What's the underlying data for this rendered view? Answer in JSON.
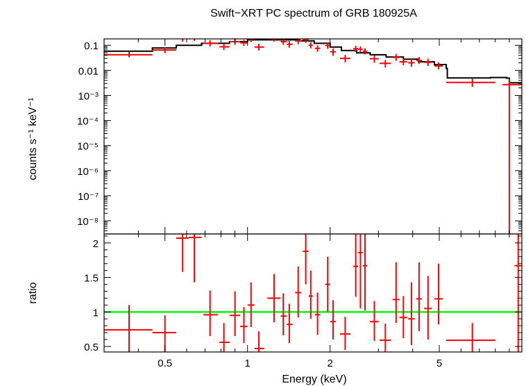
{
  "chart_data": {
    "type": "scatter",
    "title": "Swift−XRT PC spectrum of GRB 180925A",
    "xlabel": "Energy (keV)",
    "x_scale": "log",
    "xlim": [
      0.3,
      10
    ],
    "x_ticks": [
      {
        "value": 0.5,
        "label": "0.5"
      },
      {
        "value": 1,
        "label": "1"
      },
      {
        "value": 2,
        "label": "2"
      },
      {
        "value": 5,
        "label": "5"
      }
    ],
    "colors": {
      "data": "#ff0000",
      "model": "#000000",
      "unity": "#00ff00"
    },
    "top_panel": {
      "ylabel": "counts s⁻¹ keV⁻¹",
      "y_scale": "log",
      "ylim": [
        3e-09,
        0.18
      ],
      "y_ticks": [
        {
          "value": 0.1,
          "label": "0.1"
        },
        {
          "value": 0.01,
          "label": "0.01"
        },
        {
          "value": 0.001,
          "label": "10⁻³"
        },
        {
          "value": 0.0001,
          "label": "10⁻⁴"
        },
        {
          "value": 1e-05,
          "label": "10⁻⁵"
        },
        {
          "value": 1e-06,
          "label": "10⁻⁶"
        },
        {
          "value": 1e-07,
          "label": "10⁻⁷"
        },
        {
          "value": 1e-08,
          "label": "10⁻⁸"
        }
      ],
      "data": [
        {
          "x": 0.37,
          "xlo": 0.3,
          "xhi": 0.45,
          "y": 0.042,
          "ylo": 0.033,
          "yhi": 0.054
        },
        {
          "x": 0.5,
          "xlo": 0.45,
          "xhi": 0.55,
          "y": 0.065,
          "ylo": 0.048,
          "yhi": 0.085
        },
        {
          "x": 0.58,
          "xlo": 0.55,
          "xhi": 0.61,
          "y": 0.19,
          "ylo": 0.14,
          "yhi": 0.26
        },
        {
          "x": 0.64,
          "xlo": 0.61,
          "xhi": 0.68,
          "y": 0.2,
          "ylo": 0.15,
          "yhi": 0.27
        },
        {
          "x": 0.73,
          "xlo": 0.69,
          "xhi": 0.78,
          "y": 0.12,
          "ylo": 0.09,
          "yhi": 0.16
        },
        {
          "x": 0.82,
          "xlo": 0.79,
          "xhi": 0.86,
          "y": 0.087,
          "ylo": 0.065,
          "yhi": 0.115
        },
        {
          "x": 0.9,
          "xlo": 0.86,
          "xhi": 0.94,
          "y": 0.14,
          "ylo": 0.105,
          "yhi": 0.185
        },
        {
          "x": 0.97,
          "xlo": 0.94,
          "xhi": 1.0,
          "y": 0.125,
          "ylo": 0.095,
          "yhi": 0.165
        },
        {
          "x": 1.03,
          "xlo": 1.0,
          "xhi": 1.06,
          "y": 0.18,
          "ylo": 0.135,
          "yhi": 0.23
        },
        {
          "x": 1.1,
          "xlo": 1.06,
          "xhi": 1.15,
          "y": 0.085,
          "ylo": 0.062,
          "yhi": 0.115
        },
        {
          "x": 1.25,
          "xlo": 1.18,
          "xhi": 1.32,
          "y": 0.18,
          "ylo": 0.14,
          "yhi": 0.23
        },
        {
          "x": 1.35,
          "xlo": 1.32,
          "xhi": 1.39,
          "y": 0.14,
          "ylo": 0.105,
          "yhi": 0.18
        },
        {
          "x": 1.42,
          "xlo": 1.39,
          "xhi": 1.46,
          "y": 0.11,
          "ylo": 0.08,
          "yhi": 0.15
        },
        {
          "x": 1.53,
          "xlo": 1.49,
          "xhi": 1.57,
          "y": 0.15,
          "ylo": 0.11,
          "yhi": 0.2
        },
        {
          "x": 1.63,
          "xlo": 1.59,
          "xhi": 1.67,
          "y": 0.17,
          "ylo": 0.125,
          "yhi": 0.24
        },
        {
          "x": 1.7,
          "xlo": 1.67,
          "xhi": 1.73,
          "y": 0.1,
          "ylo": 0.075,
          "yhi": 0.135
        },
        {
          "x": 1.8,
          "xlo": 1.76,
          "xhi": 1.84,
          "y": 0.075,
          "ylo": 0.055,
          "yhi": 0.1
        },
        {
          "x": 1.96,
          "xlo": 1.92,
          "xhi": 2.0,
          "y": 0.098,
          "ylo": 0.072,
          "yhi": 0.13
        },
        {
          "x": 2.05,
          "xlo": 2.0,
          "xhi": 2.1,
          "y": 0.055,
          "ylo": 0.038,
          "yhi": 0.075
        },
        {
          "x": 2.27,
          "xlo": 2.17,
          "xhi": 2.37,
          "y": 0.03,
          "ylo": 0.021,
          "yhi": 0.041
        },
        {
          "x": 2.48,
          "xlo": 2.43,
          "xhi": 2.53,
          "y": 0.073,
          "ylo": 0.055,
          "yhi": 0.095
        },
        {
          "x": 2.58,
          "xlo": 2.53,
          "xhi": 2.63,
          "y": 0.07,
          "ylo": 0.052,
          "yhi": 0.09
        },
        {
          "x": 2.68,
          "xlo": 2.63,
          "xhi": 2.73,
          "y": 0.058,
          "ylo": 0.043,
          "yhi": 0.076
        },
        {
          "x": 2.9,
          "xlo": 2.79,
          "xhi": 3.01,
          "y": 0.029,
          "ylo": 0.02,
          "yhi": 0.04
        },
        {
          "x": 3.18,
          "xlo": 3.03,
          "xhi": 3.33,
          "y": 0.019,
          "ylo": 0.013,
          "yhi": 0.026
        },
        {
          "x": 3.48,
          "xlo": 3.38,
          "xhi": 3.58,
          "y": 0.033,
          "ylo": 0.024,
          "yhi": 0.045
        },
        {
          "x": 3.7,
          "xlo": 3.58,
          "xhi": 3.82,
          "y": 0.022,
          "ylo": 0.016,
          "yhi": 0.03
        },
        {
          "x": 3.96,
          "xlo": 3.85,
          "xhi": 4.07,
          "y": 0.02,
          "ylo": 0.014,
          "yhi": 0.028
        },
        {
          "x": 4.22,
          "xlo": 4.12,
          "xhi": 4.32,
          "y": 0.025,
          "ylo": 0.018,
          "yhi": 0.034
        },
        {
          "x": 4.55,
          "xlo": 4.4,
          "xhi": 4.7,
          "y": 0.021,
          "ylo": 0.015,
          "yhi": 0.029
        },
        {
          "x": 4.97,
          "xlo": 4.8,
          "xhi": 5.15,
          "y": 0.015,
          "ylo": 0.011,
          "yhi": 0.021
        },
        {
          "x": 6.6,
          "xlo": 5.3,
          "xhi": 8.0,
          "y": 0.0033,
          "ylo": 0.0022,
          "yhi": 0.0046
        },
        {
          "x": 9.0,
          "xlo": 8.5,
          "xhi": 10.0,
          "y": 0.0027,
          "ylo": 3.1e-09,
          "yhi": 0.0045
        }
      ],
      "model": [
        [
          0.3,
          0.058
        ],
        [
          0.45,
          0.078
        ],
        [
          0.55,
          0.1
        ],
        [
          0.68,
          0.12
        ],
        [
          0.86,
          0.14
        ],
        [
          1.0,
          0.165
        ],
        [
          1.25,
          0.165
        ],
        [
          1.55,
          0.15
        ],
        [
          1.75,
          0.12
        ],
        [
          2.0,
          0.085
        ],
        [
          2.2,
          0.062
        ],
        [
          2.5,
          0.05
        ],
        [
          2.8,
          0.042
        ],
        [
          3.2,
          0.034
        ],
        [
          3.7,
          0.028
        ],
        [
          4.2,
          0.022
        ],
        [
          4.8,
          0.017
        ],
        [
          5.3,
          0.012
        ],
        [
          5.35,
          0.005
        ],
        [
          7.7,
          0.0052
        ],
        [
          8.8,
          0.0049
        ],
        [
          9.0,
          0.0032
        ],
        [
          10.0,
          0.0033
        ]
      ]
    },
    "bottom_panel": {
      "ylabel": "ratio",
      "y_scale": "linear",
      "ylim": [
        0.42,
        2.13
      ],
      "y_ticks": [
        {
          "value": 0.5,
          "label": "0.5"
        },
        {
          "value": 1,
          "label": "1"
        },
        {
          "value": 1.5,
          "label": "1.5"
        },
        {
          "value": 2,
          "label": "2"
        }
      ],
      "reference_line": 1,
      "data": [
        {
          "x": 0.37,
          "xlo": 0.3,
          "xhi": 0.45,
          "y": 0.74,
          "ylo": 0.42,
          "yhi": 1.1
        },
        {
          "x": 0.5,
          "xlo": 0.45,
          "xhi": 0.55,
          "y": 0.7,
          "ylo": 0.42,
          "yhi": 0.95
        },
        {
          "x": 0.58,
          "xlo": 0.55,
          "xhi": 0.61,
          "y": 2.07,
          "ylo": 1.58,
          "yhi": 2.13
        },
        {
          "x": 0.64,
          "xlo": 0.61,
          "xhi": 0.68,
          "y": 2.08,
          "ylo": 1.43,
          "yhi": 2.13
        },
        {
          "x": 0.73,
          "xlo": 0.69,
          "xhi": 0.78,
          "y": 0.96,
          "ylo": 0.65,
          "yhi": 1.31
        },
        {
          "x": 0.82,
          "xlo": 0.79,
          "xhi": 0.86,
          "y": 0.56,
          "ylo": 0.42,
          "yhi": 0.84
        },
        {
          "x": 0.9,
          "xlo": 0.86,
          "xhi": 0.94,
          "y": 0.95,
          "ylo": 0.65,
          "yhi": 1.3
        },
        {
          "x": 0.97,
          "xlo": 0.94,
          "xhi": 1.0,
          "y": 0.79,
          "ylo": 0.55,
          "yhi": 1.07
        },
        {
          "x": 1.03,
          "xlo": 1.0,
          "xhi": 1.06,
          "y": 1.1,
          "ylo": 0.78,
          "yhi": 1.43
        },
        {
          "x": 1.1,
          "xlo": 1.06,
          "xhi": 1.15,
          "y": 0.47,
          "ylo": 0.42,
          "yhi": 0.72
        },
        {
          "x": 1.25,
          "xlo": 1.18,
          "xhi": 1.32,
          "y": 1.2,
          "ylo": 0.85,
          "yhi": 1.55
        },
        {
          "x": 1.35,
          "xlo": 1.32,
          "xhi": 1.39,
          "y": 0.94,
          "ylo": 0.66,
          "yhi": 1.27
        },
        {
          "x": 1.42,
          "xlo": 1.39,
          "xhi": 1.46,
          "y": 0.82,
          "ylo": 0.55,
          "yhi": 1.12
        },
        {
          "x": 1.53,
          "xlo": 1.49,
          "xhi": 1.57,
          "y": 1.28,
          "ylo": 0.92,
          "yhi": 1.66
        },
        {
          "x": 1.63,
          "xlo": 1.59,
          "xhi": 1.67,
          "y": 1.88,
          "ylo": 1.4,
          "yhi": 2.13
        },
        {
          "x": 1.7,
          "xlo": 1.67,
          "xhi": 1.73,
          "y": 1.23,
          "ylo": 0.9,
          "yhi": 1.6
        },
        {
          "x": 1.8,
          "xlo": 1.76,
          "xhi": 1.84,
          "y": 0.96,
          "ylo": 0.67,
          "yhi": 1.28
        },
        {
          "x": 1.96,
          "xlo": 1.92,
          "xhi": 2.0,
          "y": 1.4,
          "ylo": 1.0,
          "yhi": 1.8
        },
        {
          "x": 2.05,
          "xlo": 2.0,
          "xhi": 2.1,
          "y": 0.86,
          "ylo": 0.6,
          "yhi": 1.17
        },
        {
          "x": 2.27,
          "xlo": 2.17,
          "xhi": 2.37,
          "y": 0.68,
          "ylo": 0.45,
          "yhi": 0.93
        },
        {
          "x": 2.48,
          "xlo": 2.43,
          "xhi": 2.53,
          "y": 1.66,
          "ylo": 1.22,
          "yhi": 2.13
        },
        {
          "x": 2.58,
          "xlo": 2.53,
          "xhi": 2.63,
          "y": 1.86,
          "ylo": 1.05,
          "yhi": 2.13
        },
        {
          "x": 2.68,
          "xlo": 2.63,
          "xhi": 2.73,
          "y": 1.67,
          "ylo": 1.02,
          "yhi": 2.13
        },
        {
          "x": 2.9,
          "xlo": 2.79,
          "xhi": 3.01,
          "y": 0.86,
          "ylo": 0.58,
          "yhi": 1.16
        },
        {
          "x": 3.18,
          "xlo": 3.03,
          "xhi": 3.33,
          "y": 0.59,
          "ylo": 0.42,
          "yhi": 0.83
        },
        {
          "x": 3.48,
          "xlo": 3.38,
          "xhi": 3.58,
          "y": 1.18,
          "ylo": 0.84,
          "yhi": 1.72
        },
        {
          "x": 3.7,
          "xlo": 3.58,
          "xhi": 3.82,
          "y": 0.92,
          "ylo": 0.62,
          "yhi": 1.23
        },
        {
          "x": 3.96,
          "xlo": 3.85,
          "xhi": 4.07,
          "y": 0.9,
          "ylo": 0.52,
          "yhi": 1.43
        },
        {
          "x": 4.22,
          "xlo": 4.12,
          "xhi": 4.32,
          "y": 1.19,
          "ylo": 0.72,
          "yhi": 1.72
        },
        {
          "x": 4.55,
          "xlo": 4.4,
          "xhi": 4.7,
          "y": 1.05,
          "ylo": 0.6,
          "yhi": 1.52
        },
        {
          "x": 4.97,
          "xlo": 4.8,
          "xhi": 5.15,
          "y": 1.19,
          "ylo": 0.82,
          "yhi": 1.7
        },
        {
          "x": 6.6,
          "xlo": 5.3,
          "xhi": 8.0,
          "y": 0.59,
          "ylo": 0.42,
          "yhi": 0.84
        },
        {
          "x": 9.7,
          "xlo": 9.4,
          "xhi": 10.0,
          "y": 1.67,
          "ylo": 0.42,
          "yhi": 2.13
        }
      ]
    }
  }
}
